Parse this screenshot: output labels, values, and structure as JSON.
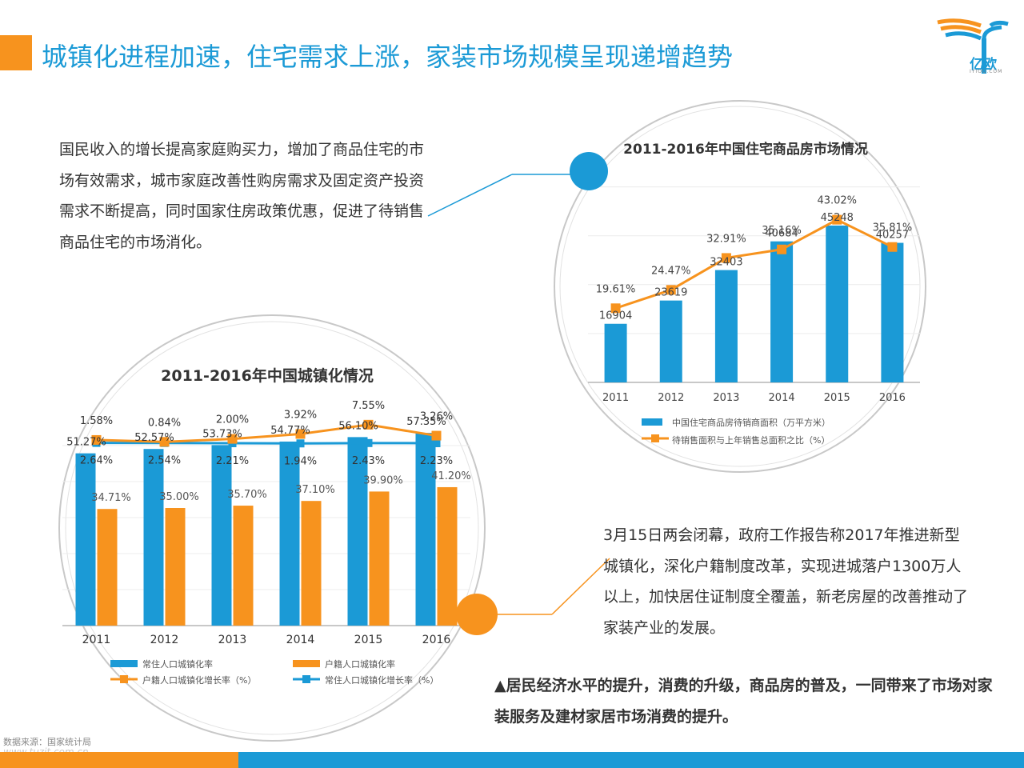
{
  "page": {
    "title": "城镇化进程加速，住宅需求上涨，家装市场规模呈现递增趋势",
    "logo_text": "亿欧",
    "logo_sub": "IYIOU.COM",
    "paragraph1": "国民收入的增长提高家庭购买力，增加了商品住宅的市场有效需求，城市家庭改善性购房需求及固定资产投资需求不断提高，同时国家住房政策优惠，促进了待销售商品住宅的市场消化。",
    "paragraph2": "3月15日两会闭幕，政府工作报告称2017年推进新型城镇化，深化户籍制度改革，实现进城落户1300万人以上，加快居住证制度全覆盖，新老房屋的改善推动了家装产业的发展。",
    "summary": "▲居民经济水平的提升，消费的升级，商品房的普及，一同带来了市场对家装服务及建材家居市场消费的提升。",
    "source": "数据来源：国家统计局",
    "watermark": "www.tuzit.com.cn",
    "colors": {
      "blue": "#1b9ad6",
      "orange": "#f7931e",
      "accent_orange": "#f7931e"
    }
  },
  "chart_data": [
    {
      "type": "bar+line",
      "title": "2011-2016年中国住宅商品房市场情况",
      "categories": [
        "2011",
        "2012",
        "2013",
        "2014",
        "2015",
        "2016"
      ],
      "series": [
        {
          "name": "中国住宅商品房待销商面积（万平方米）",
          "type": "bar",
          "color": "#1b9ad6",
          "values": [
            16904,
            23619,
            32403,
            40684,
            45248,
            40257
          ],
          "labels": [
            "16904",
            "23619",
            "32403",
            "40684",
            "45248",
            "40257"
          ]
        },
        {
          "name": "待销售面积与上年销售总面积之比（%）",
          "type": "line",
          "color": "#f7931e",
          "values": [
            19.61,
            24.47,
            32.91,
            35.16,
            43.02,
            35.81
          ],
          "labels": [
            "19.61%",
            "24.47%",
            "32.91%",
            "35.16%",
            "43.02%",
            "35.81%"
          ]
        }
      ],
      "bar_ylim": [
        0,
        60000
      ],
      "line_ylim": [
        0,
        55
      ],
      "legend_position": "bottom",
      "grid": true
    },
    {
      "type": "bar+line",
      "title": "2011-2016年中国城镇化情况",
      "categories": [
        "2011",
        "2012",
        "2013",
        "2014",
        "2015",
        "2016"
      ],
      "series": [
        {
          "name": "常住人口城镇化率",
          "type": "bar",
          "color": "#1b9ad6",
          "values": [
            51.27,
            52.57,
            53.73,
            54.77,
            56.1,
            57.35
          ],
          "labels": [
            "51.27%",
            "52.57%",
            "53.73%",
            "54.77%",
            "56.10%",
            "57.35%"
          ]
        },
        {
          "name": "户籍人口城镇化率",
          "type": "bar",
          "color": "#f7931e",
          "values": [
            34.71,
            35.0,
            35.7,
            37.1,
            39.9,
            41.2
          ],
          "labels": [
            "34.71%",
            "35.00%",
            "35.70%",
            "37.10%",
            "39.90%",
            "41.20%"
          ]
        },
        {
          "name": "户籍人口城镇化增长率（%）",
          "type": "line",
          "color": "#f7931e",
          "values": [
            1.58,
            0.84,
            2.0,
            3.92,
            7.55,
            3.26
          ],
          "labels": [
            "1.58%",
            "0.84%",
            "2.00%",
            "3.92%",
            "7.55%",
            "3.26%"
          ]
        },
        {
          "name": "常住人口城镇化增长率（%）",
          "type": "line",
          "color": "#1b9ad6",
          "values": [
            2.64,
            2.54,
            2.21,
            1.94,
            2.43,
            2.23
          ],
          "labels": [
            "2.64%",
            "2.54%",
            "2.21%",
            "1.94%",
            "2.43%",
            "2.23%"
          ]
        }
      ],
      "bar_ylim": [
        0,
        60
      ],
      "legend_position": "bottom",
      "grid": true
    }
  ]
}
